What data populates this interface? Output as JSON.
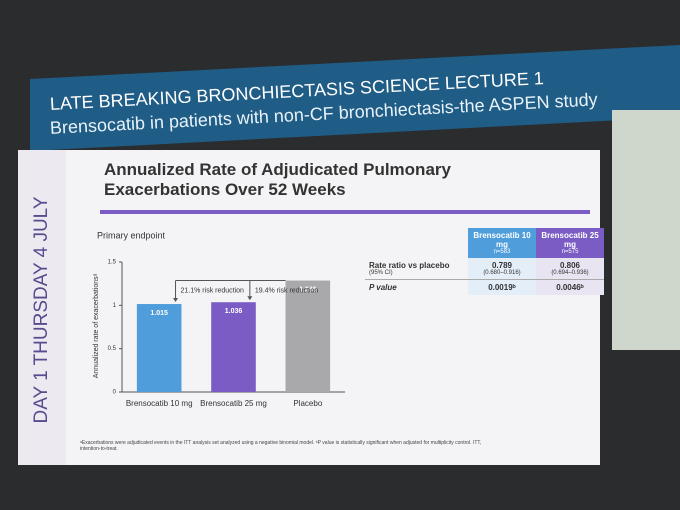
{
  "header": {
    "line1": "LATE BREAKING BRONCHIECTASIS SCIENCE LECTURE 1",
    "line2": "Brensocatib in patients with non-CF bronchiectasis-the ASPEN study"
  },
  "sidebar": "DAY 1 THURSDAY 4 JULY",
  "slide_title": "Annualized Rate of Adjudicated Pulmonary Exacerbations Over 52 Weeks",
  "chart_data": {
    "type": "bar",
    "subtitle": "Primary endpoint",
    "y_label": "Annualized rate of exacerbationsᵃ",
    "categories": [
      "Brensocatib 10 mg",
      "Brensocatib 25 mg",
      "Placebo"
    ],
    "values": [
      1.015,
      1.036,
      1.286
    ],
    "colors": [
      "#4f9ddb",
      "#7a5cc4",
      "#a9a9ab"
    ],
    "ylim": [
      0,
      1.5
    ],
    "yticks": [
      0,
      0.5,
      1,
      1.5
    ],
    "annotations": [
      "21.1% risk reduction",
      "19.4% risk reduction"
    ]
  },
  "table": {
    "headers": [
      [
        "Brensocatib 10 mg",
        "n=583"
      ],
      [
        "Brensocatib 25 mg",
        "n=575"
      ]
    ],
    "rows": [
      {
        "label": "Rate ratio vs placebo",
        "sublabel": "(95% CI)",
        "cells": [
          [
            "0.789",
            "(0.680–0.916)"
          ],
          [
            "0.806",
            "(0.694–0.936)"
          ]
        ]
      },
      {
        "label": "P value",
        "cells": [
          [
            "0.0019ᵇ"
          ],
          [
            "0.0046ᵇ"
          ]
        ]
      }
    ]
  },
  "footnote": "ᵃExacerbations were adjudicated events in the ITT analysis set analyzed using a negative binomial model. ᵇP value is statistically significant when adjusted for multiplicity control. ITT, intention-to-treat."
}
